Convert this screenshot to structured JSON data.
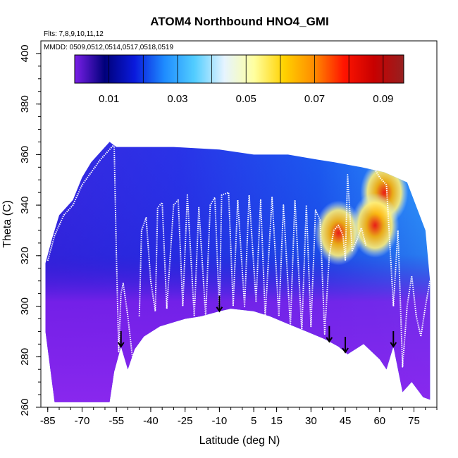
{
  "chart_data": {
    "type": "heatmap",
    "title": "ATOM4 Northbound HNO4_GMI",
    "flights_label": "Flts: 7,8,9,10,11,12",
    "dates_label": "MMDD: 0509,0512,0514,0517,0518,0519",
    "xlabel": "Latitude (deg N)",
    "ylabel": "Theta (C)",
    "xlim": [
      -88,
      85
    ],
    "ylim": [
      260,
      405
    ],
    "x_ticks": [
      -85,
      -70,
      -55,
      -40,
      -25,
      -10,
      5,
      15,
      30,
      45,
      60,
      75
    ],
    "y_ticks": [
      260,
      280,
      300,
      320,
      340,
      360,
      380,
      400
    ],
    "colorbar": {
      "range": [
        0,
        0.096
      ],
      "tick_values": [
        0.01,
        0.03,
        0.05,
        0.07,
        0.09
      ],
      "tick_labels": [
        "0.01",
        "0.03",
        "0.05",
        "0.07",
        "0.09"
      ],
      "colors": [
        "#7a1fe8",
        "#00007a",
        "#0a1adc",
        "#1e8cff",
        "#52cdff",
        "#e6f4ff",
        "#ffffa0",
        "#ffd200",
        "#ff8c00",
        "#ff1400",
        "#c80000",
        "#962020"
      ]
    },
    "arrow_latitudes": [
      -53,
      -10,
      38,
      45,
      66
    ],
    "lower_boundary": [
      [
        -86,
        290
      ],
      [
        -84,
        276
      ],
      [
        -82,
        262
      ],
      [
        -60,
        262
      ],
      [
        -58,
        262
      ],
      [
        -56,
        274
      ],
      [
        -53,
        284
      ],
      [
        -50,
        275
      ],
      [
        -47,
        283
      ],
      [
        -43,
        288
      ],
      [
        -36,
        292
      ],
      [
        -25,
        295
      ],
      [
        -18,
        296
      ],
      [
        -10,
        298
      ],
      [
        -5,
        299
      ],
      [
        5,
        298
      ],
      [
        12,
        296
      ],
      [
        20,
        293
      ],
      [
        28,
        290
      ],
      [
        36,
        287
      ],
      [
        42,
        284
      ],
      [
        46,
        281
      ],
      [
        53,
        285
      ],
      [
        60,
        279
      ],
      [
        63,
        275
      ],
      [
        66,
        284
      ],
      [
        70,
        266
      ],
      [
        74,
        270
      ],
      [
        79,
        264
      ],
      [
        82,
        263
      ]
    ],
    "upper_boundary": [
      [
        -86,
        317
      ],
      [
        -83,
        327
      ],
      [
        -80,
        336
      ],
      [
        -74,
        342
      ],
      [
        -70,
        351
      ],
      [
        -66,
        357
      ],
      [
        -62,
        361
      ],
      [
        -58,
        365
      ],
      [
        -55,
        363
      ],
      [
        -30,
        363
      ],
      [
        -10,
        362
      ],
      [
        5,
        360
      ],
      [
        20,
        360
      ],
      [
        33,
        358
      ],
      [
        40,
        357
      ],
      [
        46,
        356
      ],
      [
        52,
        355
      ],
      [
        62,
        353
      ],
      [
        72,
        349
      ],
      [
        80,
        330
      ],
      [
        82,
        310
      ]
    ],
    "hotspots": [
      {
        "lat": 42,
        "theta": 329,
        "value": 0.085
      },
      {
        "lat": 62,
        "theta": 345,
        "value": 0.075
      },
      {
        "lat": 58,
        "theta": 332,
        "value": 0.07
      }
    ],
    "flight_tracks": [
      {
        "pts": [
          [
            -85,
            318
          ],
          [
            -82,
            328
          ],
          [
            -78,
            336
          ],
          [
            -74,
            340
          ],
          [
            -70,
            348
          ],
          [
            -66,
            353
          ],
          [
            -62,
            358
          ],
          [
            -58,
            362
          ],
          [
            -56,
            364
          ]
        ]
      },
      {
        "pts": [
          [
            -56,
            364
          ],
          [
            -55,
            320
          ],
          [
            -54,
            282
          ],
          [
            -53,
            305
          ],
          [
            -52,
            309
          ],
          [
            -50,
            296
          ],
          [
            -48,
            280
          ]
        ]
      },
      {
        "pts": [
          [
            -45,
            296
          ],
          [
            -44,
            330
          ],
          [
            -42,
            335
          ],
          [
            -40,
            310
          ],
          [
            -38,
            298
          ],
          [
            -37,
            339
          ],
          [
            -35,
            341
          ],
          [
            -33,
            299
          ],
          [
            -30,
            340
          ],
          [
            -28,
            342
          ],
          [
            -26,
            300
          ],
          [
            -24,
            344
          ],
          [
            -21,
            296
          ],
          [
            -19,
            339
          ],
          [
            -16,
            296
          ],
          [
            -14,
            340
          ],
          [
            -12,
            343
          ],
          [
            -10,
            298
          ],
          [
            -9,
            344
          ],
          [
            -6,
            345
          ],
          [
            -4,
            300
          ],
          [
            -2,
            342
          ],
          [
            1,
            300
          ],
          [
            3,
            344
          ],
          [
            6,
            302
          ],
          [
            8,
            342
          ],
          [
            10,
            296
          ],
          [
            13,
            343
          ],
          [
            16,
            296
          ],
          [
            18,
            340
          ],
          [
            21,
            292
          ],
          [
            23,
            342
          ],
          [
            26,
            290
          ],
          [
            28,
            340
          ],
          [
            30,
            292
          ],
          [
            32,
            338
          ],
          [
            34,
            334
          ],
          [
            36,
            289
          ],
          [
            38,
            320
          ]
        ]
      },
      {
        "pts": [
          [
            38,
            320
          ],
          [
            40,
            330
          ],
          [
            42,
            332
          ],
          [
            44,
            328
          ],
          [
            45,
            318
          ],
          [
            46,
            352
          ],
          [
            48,
            322
          ],
          [
            50,
            326
          ],
          [
            52,
            331
          ],
          [
            54,
            324
          ]
        ]
      },
      {
        "pts": [
          [
            50,
            356
          ],
          [
            52,
            358
          ],
          [
            55,
            359
          ],
          [
            58,
            354
          ],
          [
            60,
            351
          ],
          [
            63,
            348
          ],
          [
            66,
            300
          ],
          [
            68,
            330
          ],
          [
            70,
            276
          ],
          [
            72,
            300
          ],
          [
            74,
            312
          ],
          [
            76,
            296
          ],
          [
            78,
            288
          ],
          [
            80,
            300
          ],
          [
            82,
            310
          ]
        ]
      }
    ]
  }
}
